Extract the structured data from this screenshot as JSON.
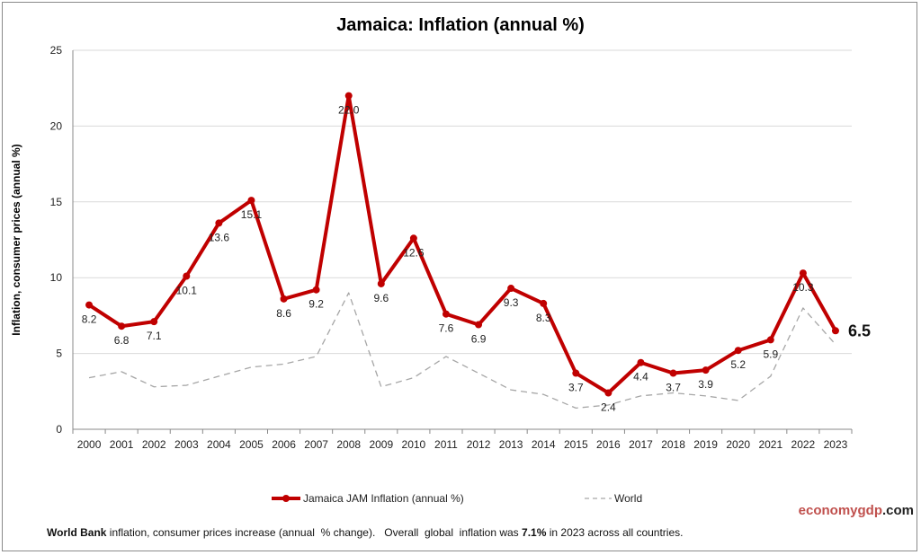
{
  "chart_data": {
    "type": "line",
    "title": "Jamaica:  Inflation (annual %)",
    "ylabel": "Inflation, consumer prices (annual %)",
    "xlabel": "",
    "ylim": [
      0,
      25
    ],
    "yticks": [
      0,
      5,
      10,
      15,
      20,
      25
    ],
    "grid": true,
    "legend_position": "bottom",
    "categories": [
      "2000",
      "2001",
      "2002",
      "2003",
      "2004",
      "2005",
      "2006",
      "2007",
      "2008",
      "2009",
      "2010",
      "2011",
      "2012",
      "2013",
      "2014",
      "2015",
      "2016",
      "2017",
      "2018",
      "2019",
      "2020",
      "2021",
      "2022",
      "2023"
    ],
    "series": [
      {
        "name": "Jamaica JAM Inflation (annual %)",
        "color": "#c00000",
        "labels": true,
        "values": [
          8.2,
          6.8,
          7.1,
          10.1,
          13.6,
          15.1,
          8.6,
          9.2,
          22.0,
          9.6,
          12.6,
          7.6,
          6.9,
          9.3,
          8.3,
          3.7,
          2.4,
          4.4,
          3.7,
          3.9,
          5.2,
          5.9,
          10.3,
          6.5
        ]
      },
      {
        "name": "World",
        "color": "#a6a6a6",
        "dashed": true,
        "values": [
          3.4,
          3.8,
          2.8,
          2.9,
          3.5,
          4.1,
          4.3,
          4.8,
          9.0,
          2.8,
          3.4,
          4.8,
          3.7,
          2.6,
          2.3,
          1.4,
          1.6,
          2.2,
          2.4,
          2.2,
          1.9,
          3.5,
          8.0,
          5.6
        ]
      }
    ],
    "last_value_label": "6.5"
  },
  "footer": {
    "bold1": "World Bank",
    "text1": " inflation, consumer prices increase (annual  % change).   Overall  global  inflation was ",
    "bold2": "7.1%",
    "text2": " in 2023 across all countries."
  },
  "brand": {
    "part1": "economygdp",
    "part2": ".com"
  }
}
